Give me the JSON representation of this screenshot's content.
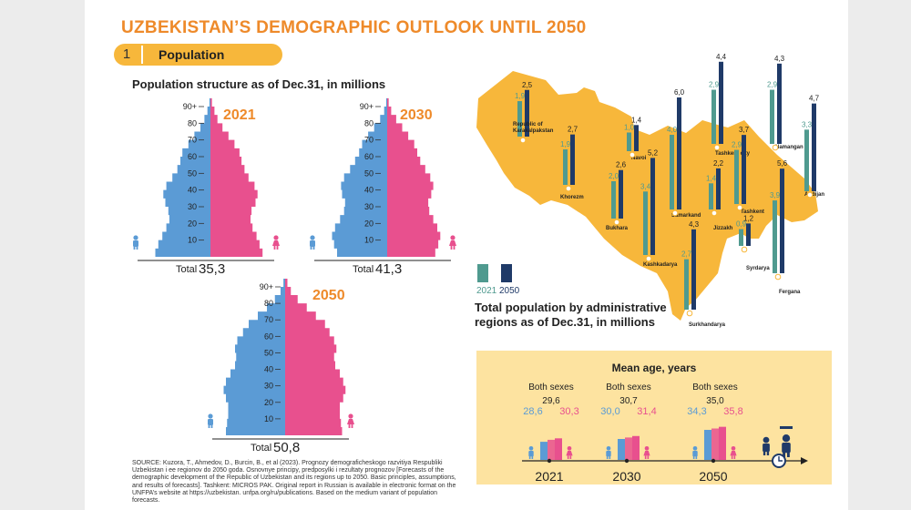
{
  "title": "UZBEKISTAN’S DEMOGRAPHIC OUTLOOK UNTIL 2050",
  "section": {
    "number": "1",
    "label": "Population"
  },
  "pyramids": {
    "subtitle": "Population structure as of Dec.31, in millions",
    "age_ticks": [
      "10",
      "20",
      "30",
      "40",
      "50",
      "60",
      "70",
      "80",
      "90+"
    ],
    "total_label": "Total",
    "items": [
      {
        "year": "2021",
        "total": "35,3"
      },
      {
        "year": "2030",
        "total": "41,3"
      },
      {
        "year": "2050",
        "total": "50,8"
      }
    ]
  },
  "map": {
    "subtitle_line1": "Total population by administrative",
    "subtitle_line2": "regions as of Dec.31, in millions",
    "legend": [
      "2021",
      "2050"
    ]
  },
  "mean_age": {
    "title": "Mean age, years",
    "both_sexes": "Both sexes"
  },
  "source_text": "SOURCE: Kuzora, T., Ahmedov, D., Burcin, B., et al (2023). Prognozy demograficheskogo razvitiya Respubliki Uzbekistan i ee regionov do 2050 goda. Osnovnye principy, predposylki i rezultaty prognozov [Forecasts of the demographic development of the Republic of Uzbekistan and its regions up to 2050. Basic principles, assumptions, and results of forecasts]. Tashkent: MICROS PAK. Original report in Russian is available in electronic format on the UNFPA’s website at https://uzbekistan. unfpa.org/ru/publications. Based on the medium variant of population forecasts.",
  "colors": {
    "orange": "#ee8a2a",
    "yellow": "#f7b73b",
    "male": "#5b9bd5",
    "female": "#e8508e",
    "teal": "#4f9a8f",
    "navy": "#1f3a68",
    "panel": "#fde3a0"
  },
  "chart_data": [
    {
      "type": "bar",
      "title": "Total population by administrative regions as of Dec.31, in millions",
      "series_names": [
        "2021",
        "2050"
      ],
      "regions": [
        {
          "name": "Republic of Karakalpakstan",
          "values": [
            "1,9",
            "2,5"
          ]
        },
        {
          "name": "Khorezm",
          "values": [
            "1,9",
            "2,7"
          ]
        },
        {
          "name": "Navoi",
          "values": [
            "1,0",
            "1,4"
          ]
        },
        {
          "name": "Bukhara",
          "values": [
            "2,0",
            "2,6"
          ]
        },
        {
          "name": "Kashkadarya",
          "values": [
            "3,4",
            "5,2"
          ]
        },
        {
          "name": "Samarkand",
          "values": [
            "4,0",
            "6,0"
          ]
        },
        {
          "name": "Jizzakh",
          "values": [
            "1,4",
            "2,2"
          ]
        },
        {
          "name": "Tashkent city",
          "values": [
            "2,9",
            "4,4"
          ]
        },
        {
          "name": "Tashkent",
          "values": [
            "2,9",
            "3,7"
          ]
        },
        {
          "name": "Syrdarya",
          "values": [
            "0,9",
            "1,2"
          ]
        },
        {
          "name": "Surkhandarya",
          "values": [
            "2,7",
            "4,3"
          ]
        },
        {
          "name": "Namangan",
          "values": [
            "2,9",
            "4,3"
          ]
        },
        {
          "name": "Fergana",
          "values": [
            "3,9",
            "5,6"
          ]
        },
        {
          "name": "Andijan",
          "values": [
            "3,3",
            "4,7"
          ]
        }
      ]
    },
    {
      "type": "bar",
      "title": "Mean age, years",
      "series_names": [
        "Male",
        "Both sexes",
        "Female"
      ],
      "groups": [
        {
          "year": "2021",
          "values": [
            "28,6",
            "29,6",
            "30,3"
          ]
        },
        {
          "year": "2030",
          "values": [
            "30,0",
            "30,7",
            "31,4"
          ]
        },
        {
          "year": "2050",
          "values": [
            "34,3",
            "35,0",
            "35,8"
          ]
        }
      ]
    },
    {
      "type": "bar",
      "title": "Population structure as of Dec.31, in millions (population pyramids)",
      "pyramids": [
        {
          "year": "2021",
          "total": "35,3",
          "male": [
            0.55,
            0.52,
            0.48,
            0.44,
            0.41,
            0.42,
            0.45,
            0.47,
            0.44,
            0.38,
            0.33,
            0.3,
            0.28,
            0.22,
            0.16,
            0.1,
            0.06,
            0.03,
            0.01
          ],
          "female": [
            0.52,
            0.49,
            0.46,
            0.42,
            0.4,
            0.41,
            0.45,
            0.47,
            0.44,
            0.38,
            0.34,
            0.31,
            0.29,
            0.24,
            0.18,
            0.12,
            0.07,
            0.04,
            0.015
          ]
        },
        {
          "year": "2030",
          "total": "41,3",
          "male": [
            0.5,
            0.53,
            0.55,
            0.52,
            0.47,
            0.43,
            0.42,
            0.45,
            0.46,
            0.43,
            0.37,
            0.32,
            0.28,
            0.25,
            0.19,
            0.13,
            0.07,
            0.03,
            0.01
          ],
          "female": [
            0.48,
            0.51,
            0.53,
            0.5,
            0.46,
            0.42,
            0.41,
            0.44,
            0.46,
            0.43,
            0.38,
            0.33,
            0.3,
            0.27,
            0.21,
            0.15,
            0.09,
            0.04,
            0.015
          ]
        },
        {
          "year": "2050",
          "total": "50,8",
          "male": [
            0.52,
            0.51,
            0.5,
            0.5,
            0.52,
            0.54,
            0.52,
            0.48,
            0.44,
            0.43,
            0.44,
            0.42,
            0.37,
            0.32,
            0.24,
            0.16,
            0.09,
            0.04,
            0.015
          ],
          "female": [
            0.5,
            0.49,
            0.48,
            0.48,
            0.51,
            0.53,
            0.51,
            0.48,
            0.44,
            0.43,
            0.45,
            0.43,
            0.39,
            0.35,
            0.27,
            0.19,
            0.11,
            0.05,
            0.02
          ]
        }
      ]
    }
  ]
}
